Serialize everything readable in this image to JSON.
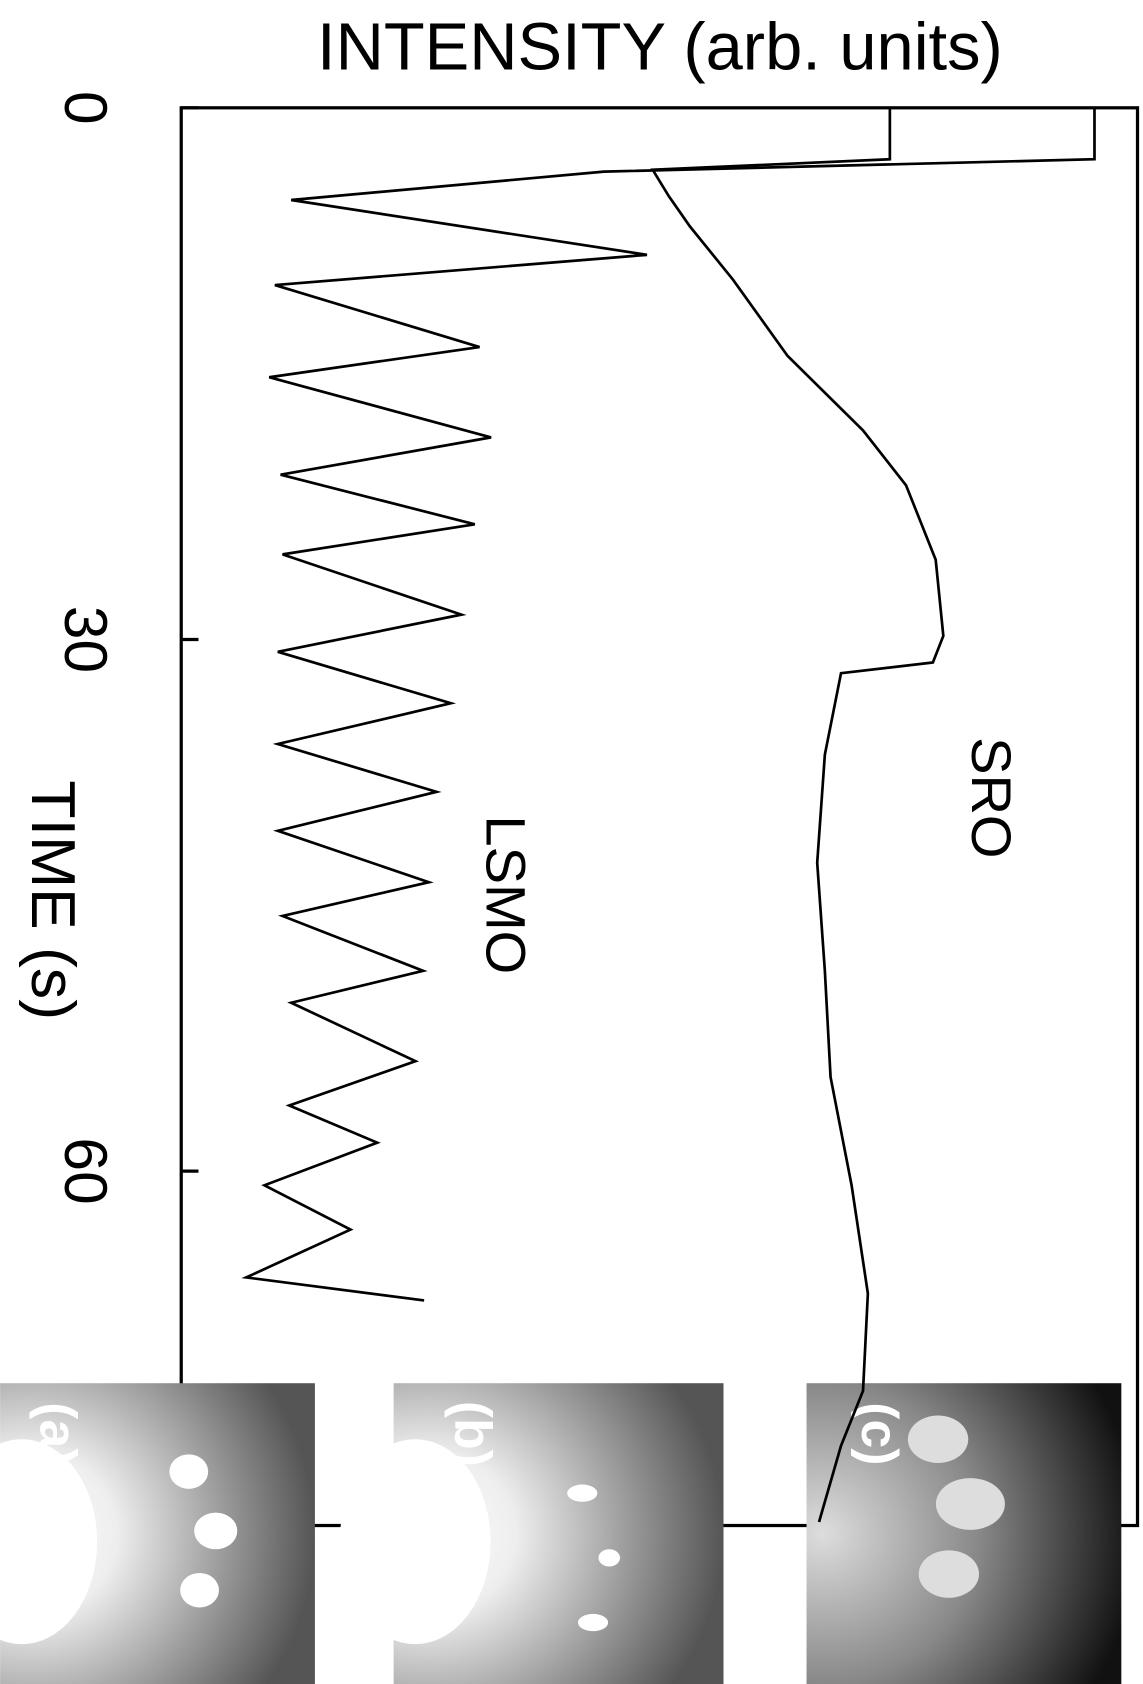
{
  "chart_data": {
    "type": "line",
    "ylabel": "INTENSITY (arb. units)",
    "xlabel": "TIME (s)",
    "xlim": [
      0,
      80
    ],
    "xticks": [
      0,
      30,
      60
    ],
    "ylim": [
      0,
      100
    ],
    "series": [
      {
        "name": "LSMO",
        "color": "#000000",
        "x": [
          0,
          2.9,
          3.6,
          5.2,
          8.3,
          10.0,
          13.5,
          15.2,
          18.6,
          20.7,
          23.5,
          25.2,
          28.6,
          30.7,
          33.6,
          35.9,
          38.6,
          40.8,
          43.7,
          45.6,
          48.7,
          50.5,
          53.8,
          56.3,
          58.4,
          60.8,
          63.3,
          66.0,
          67.3
        ],
        "values": [
          95.5,
          95.5,
          44.2,
          11.5,
          48.7,
          9.8,
          31.2,
          9.2,
          32.4,
          10.4,
          30.7,
          10.6,
          29.3,
          10.1,
          28.2,
          10.1,
          26.7,
          10.1,
          25.9,
          10.6,
          25.3,
          11.5,
          24.5,
          11.3,
          20.5,
          8.7,
          17.7,
          6.8,
          25.4
        ]
      },
      {
        "name": "SRO",
        "color": "#000000",
        "x": [
          0,
          2.9,
          3.5,
          5.0,
          6.7,
          9.7,
          14.0,
          18.2,
          21.3,
          25.5,
          29.8,
          31.3,
          31.9,
          36.5,
          42.6,
          48.7,
          54.7,
          60.8,
          66.9,
          72.4,
          75.5,
          79.8
        ],
        "values": [
          74.1,
          74.1,
          49.3,
          51.0,
          53.2,
          57.7,
          63.4,
          71.3,
          75.8,
          78.9,
          79.7,
          78.6,
          69.0,
          67.3,
          66.5,
          67.3,
          67.9,
          70.1,
          71.8,
          71.3,
          69.0,
          66.7
        ]
      }
    ],
    "insets": [
      "(a)",
      "(b)",
      "(c)"
    ]
  }
}
